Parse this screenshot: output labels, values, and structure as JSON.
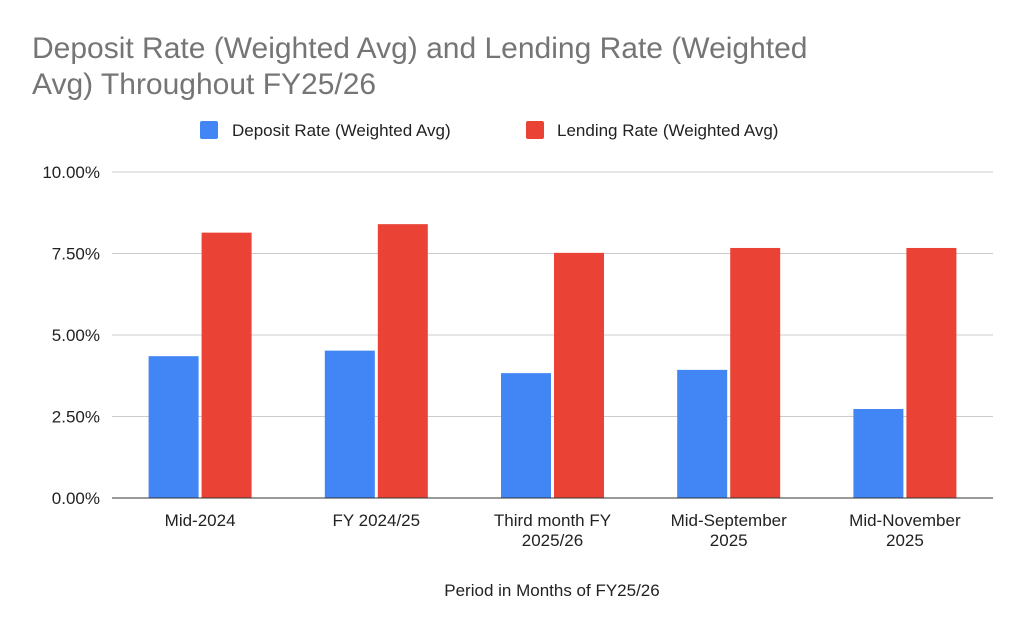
{
  "chart_data": {
    "type": "bar",
    "title_lines": [
      "Deposit Rate (Weighted Avg) and Lending Rate (Weighted",
      "Avg) Throughout FY25/26"
    ],
    "xlabel": "Period in Months of FY25/26",
    "ylabel": "",
    "categories": [
      [
        "Mid-2024"
      ],
      [
        "FY 2024/25"
      ],
      [
        "Third month FY",
        "2025/26"
      ],
      [
        "Mid-September",
        "2025"
      ],
      [
        "Mid-November",
        "2025"
      ]
    ],
    "series": [
      {
        "name": "Deposit Rate (Weighted Avg)",
        "color": "#4285f4",
        "values": [
          4.35,
          4.52,
          3.83,
          3.93,
          2.73
        ]
      },
      {
        "name": "Lending Rate (Weighted Avg)",
        "color": "#ea4335",
        "values": [
          8.14,
          8.4,
          7.52,
          7.67,
          7.67
        ]
      }
    ],
    "ylim": [
      0,
      10
    ],
    "yticks": [
      0,
      2.5,
      5,
      7.5,
      10
    ],
    "ytick_labels": [
      "0.00%",
      "2.50%",
      "5.00%",
      "7.50%",
      "10.00%"
    ],
    "legend_position": "top-center",
    "grid": true
  }
}
